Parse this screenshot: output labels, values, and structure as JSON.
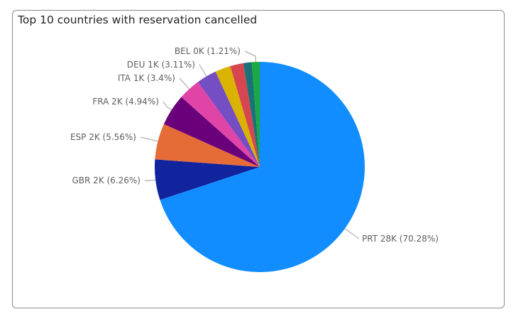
{
  "chart_data": {
    "type": "pie",
    "title": "Top 10 countries with reservation cancelled",
    "slices": [
      {
        "label": "PRT 28K (70.28%)",
        "value": 70.28,
        "color": "#118DFF"
      },
      {
        "label": "GBR 2K (6.26%)",
        "value": 6.26,
        "color": "#12239E"
      },
      {
        "label": "ESP 2K (5.56%)",
        "value": 5.56,
        "color": "#E66C37"
      },
      {
        "label": "FRA 2K (4.94%)",
        "value": 4.94,
        "color": "#6B007B"
      },
      {
        "label": "ITA 1K (3.4%)",
        "value": 3.4,
        "color": "#E044A7"
      },
      {
        "label": "DEU 1K (3.11%)",
        "value": 3.11,
        "color": "#744EC2"
      },
      {
        "label": "",
        "value": 2.4,
        "color": "#D9B300"
      },
      {
        "label": "",
        "value": 2.05,
        "color": "#D64550"
      },
      {
        "label": "",
        "value": 1.3,
        "color": "#197278"
      },
      {
        "label": "BEL 0K (1.21%)",
        "value": 1.21,
        "color": "#1AAB40"
      }
    ]
  }
}
